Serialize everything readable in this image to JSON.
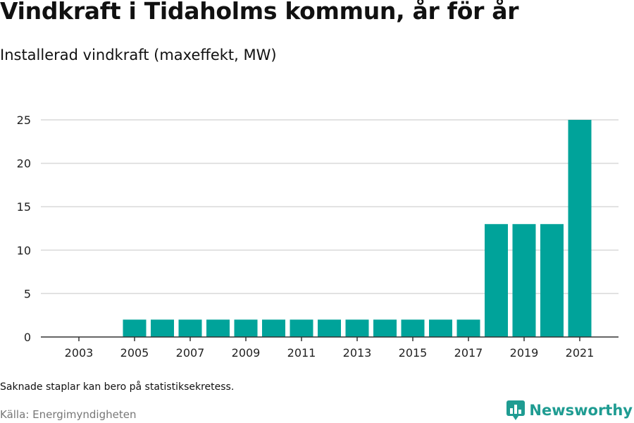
{
  "header": {
    "title": "Vindkraft i Tidaholms kommun, år för år",
    "subtitle": "Installerad vindkraft (maxeffekt, MW)"
  },
  "footer": {
    "note": "Saknade staplar kan bero på statistiksekretess.",
    "source": "Källa: Energimyndigheten",
    "brand": "Newsworthy",
    "brand_icon": "bar-chart-logo-icon"
  },
  "colors": {
    "bar": "#00a39a",
    "grid": "#d9d9d9",
    "axis": "#333333",
    "brand": "#1f9c92"
  },
  "chart_data": {
    "type": "bar",
    "title": "",
    "xlabel": "",
    "ylabel": "",
    "ylim": [
      0,
      25
    ],
    "yticks": [
      0,
      5,
      10,
      15,
      20,
      25
    ],
    "xtick_labels": [
      "2003",
      "2005",
      "2007",
      "2009",
      "2011",
      "2013",
      "2015",
      "2017",
      "2019",
      "2021"
    ],
    "categories": [
      "2003",
      "2004",
      "2005",
      "2006",
      "2007",
      "2008",
      "2009",
      "2010",
      "2011",
      "2012",
      "2013",
      "2014",
      "2015",
      "2016",
      "2017",
      "2018",
      "2019",
      "2020",
      "2021"
    ],
    "values": [
      0,
      0,
      2,
      2,
      2,
      2,
      2,
      2,
      2,
      2,
      2,
      2,
      2,
      2,
      2,
      13,
      13,
      13,
      25
    ],
    "grid": true,
    "legend": "none"
  }
}
